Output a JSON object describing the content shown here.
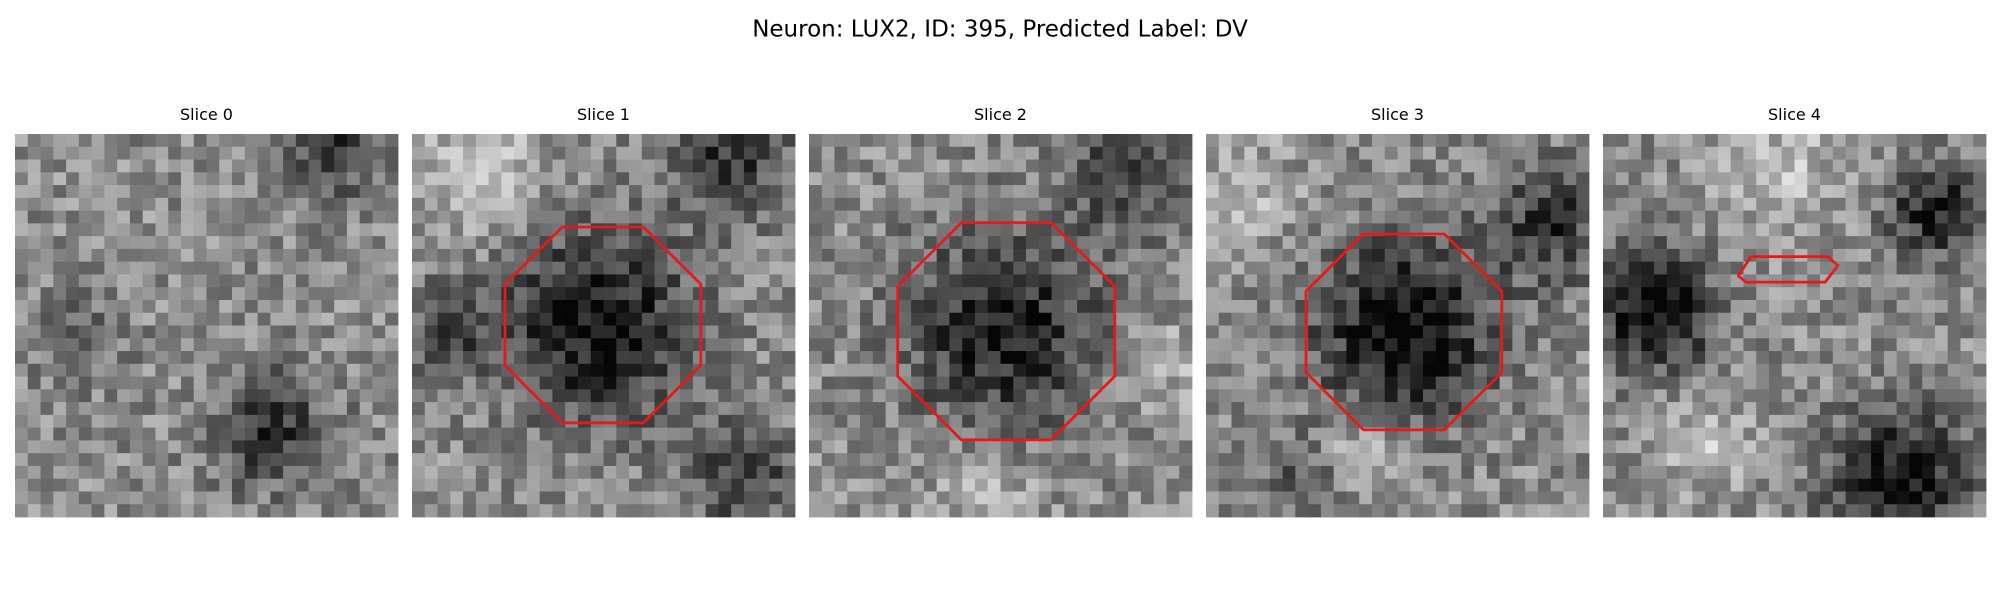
{
  "figure": {
    "title": "Neuron: LUX2, ID: 395, Predicted Label: DV",
    "panels": [
      {
        "title": "Slice 0"
      },
      {
        "title": "Slice 1"
      },
      {
        "title": "Slice 2"
      },
      {
        "title": "Slice 3"
      },
      {
        "title": "Slice 4"
      }
    ]
  }
}
